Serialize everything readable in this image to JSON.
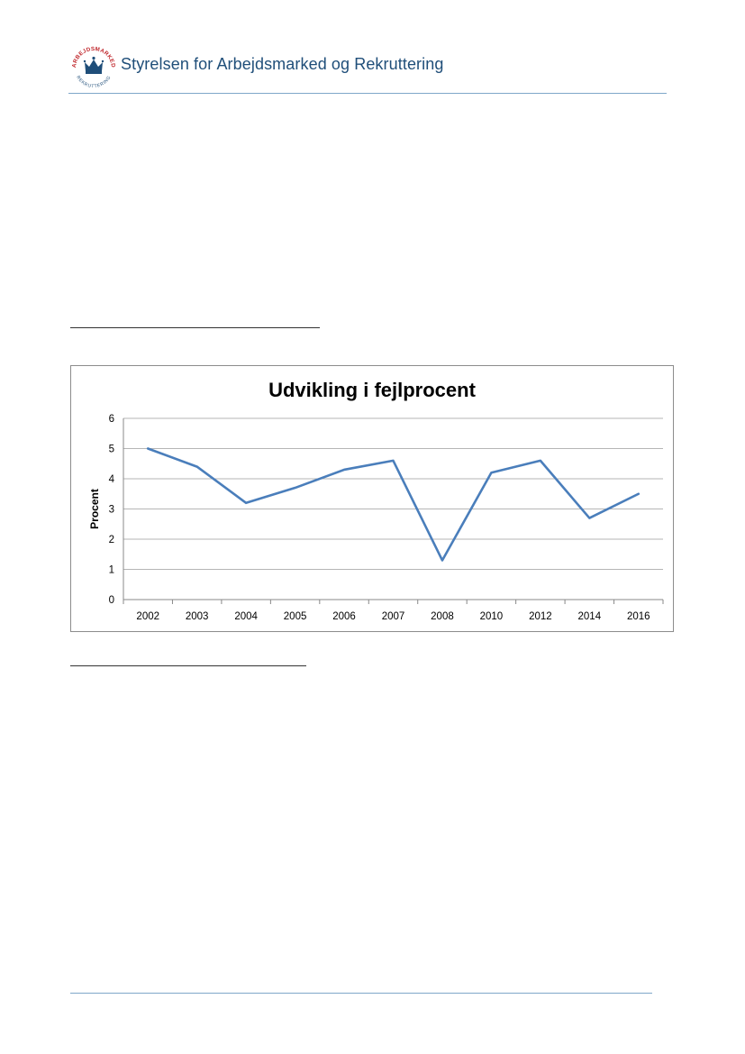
{
  "header": {
    "agency_name": "Styrelsen for Arbejdsmarked og Rekruttering",
    "logo_text_top": "ARBEJDSMARKED",
    "logo_text_bottom": "REKRUTTERING",
    "logo_icon": "crown-icon"
  },
  "colors": {
    "brand_blue": "#1f4e79",
    "rule_blue": "#7fa7c9",
    "logo_red": "#c0282d",
    "series_blue": "#4a7ebb"
  },
  "chart_data": {
    "type": "line",
    "title": "Udvikling i fejlprocent",
    "xlabel": "",
    "ylabel": "Procent",
    "categories": [
      "2002",
      "2003",
      "2004",
      "2005",
      "2006",
      "2007",
      "2008",
      "2010",
      "2012",
      "2014",
      "2016"
    ],
    "series": [
      {
        "values": [
          5.0,
          4.4,
          3.2,
          3.7,
          4.3,
          4.6,
          1.3,
          4.2,
          4.6,
          2.7,
          3.5
        ]
      }
    ],
    "yticks": [
      "0",
      "1",
      "2",
      "3",
      "4",
      "5",
      "6"
    ],
    "ylim": [
      0,
      6
    ],
    "grid": true,
    "legend": "none"
  }
}
